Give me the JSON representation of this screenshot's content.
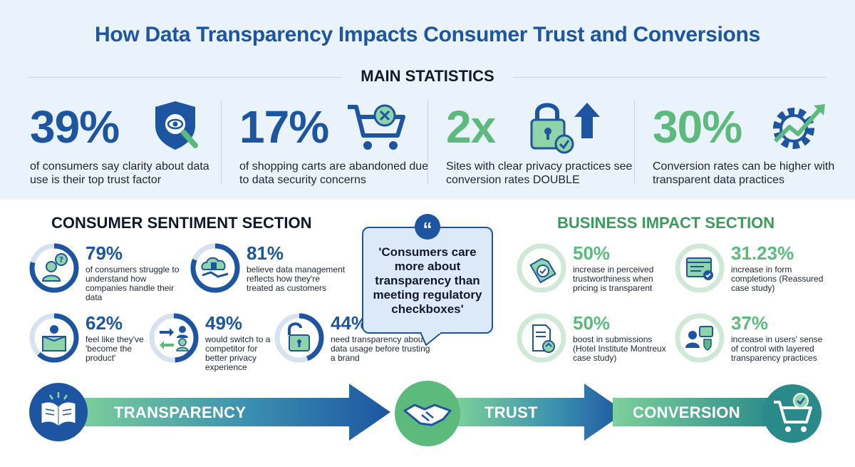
{
  "title": "How Data Transparency Impacts Consumer Trust and Conversions",
  "main_statistics": {
    "heading": "MAIN STATISTICS",
    "items": [
      {
        "value": "39%",
        "description": "of consumers say clarity about data use is their top trust factor",
        "icon": "shield-magnifier-icon",
        "color": "#1d55a0"
      },
      {
        "value": "17%",
        "description": "of shopping carts are abandoned due to data security concerns",
        "icon": "shopping-cart-x-icon",
        "color": "#1d55a0"
      },
      {
        "value": "2x",
        "description": "Sites with clear privacy practices see conversion rates DOUBLE",
        "icon": "padlock-arrow-up-icon",
        "color": "#5cbb7c"
      },
      {
        "value": "30%",
        "description": "Conversion rates can be higher with transparent data practices",
        "icon": "gear-growth-arrow-icon",
        "color": "#5cbb7c"
      }
    ]
  },
  "consumer_sentiment": {
    "heading": "CONSUMER SENTIMENT SECTION",
    "items": [
      {
        "value": "79%",
        "description": "of consumers struggle to understand how companies handle their data",
        "icon": "person-question-icon",
        "fill": 0.79
      },
      {
        "value": "81%",
        "description": "believe data management reflects how they're treated as customers",
        "icon": "cloud-handshake-icon",
        "fill": 0.81
      },
      {
        "value": "62%",
        "description": "feel like they've 'become the product'",
        "icon": "person-in-box-icon",
        "fill": 0.62
      },
      {
        "value": "49%",
        "description": "would switch to a competitor for better privacy experience",
        "icon": "people-switch-icon",
        "fill": 0.49
      },
      {
        "value": "44%",
        "description": "need transparency about data usage before trusting a brand",
        "icon": "open-padlock-icon",
        "fill": 0.44
      }
    ]
  },
  "quote": {
    "text": "'Consumers care more about transparency than meeting regulatory checkboxes'",
    "icon": "quote-icon"
  },
  "business_impact": {
    "heading": "BUSINESS IMPACT SECTION",
    "items": [
      {
        "value": "50%",
        "description": "increase in perceived trustworthiness when pricing is transparent",
        "icon": "price-tag-check-icon"
      },
      {
        "value": "31.23%",
        "description": "increase in form completions (Reassured case study)",
        "icon": "form-check-icon"
      },
      {
        "value": "50%",
        "description": "boost in submissions (Hotel Institute Montreux case study)",
        "icon": "document-upload-icon"
      },
      {
        "value": "37%",
        "description": "increase in users' sense of control with layered transparency practices",
        "icon": "person-shield-settings-icon"
      }
    ]
  },
  "flow": {
    "steps": [
      "TRANSPARENCY",
      "TRUST",
      "CONVERSION"
    ],
    "icons": [
      "open-book-icon",
      "handshake-icon",
      "cart-check-icon"
    ]
  },
  "colors": {
    "blue": "#1d55a0",
    "green": "#5cbb7c",
    "teal": "#2a8a8a",
    "light_bg": "#eaf2fb"
  }
}
